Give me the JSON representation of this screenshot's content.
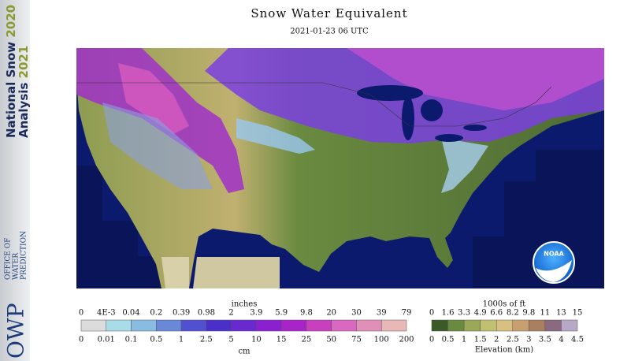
{
  "sidebar": {
    "line1": "National Snow",
    "year1": "2020",
    "line2": "Analysis",
    "year2": "2021"
  },
  "agency": {
    "abbr": "OWP",
    "name_lines": [
      "OFFICE OF",
      "WATER",
      "PREDICTION"
    ]
  },
  "title": "Snow Water Equivalent",
  "subtitle": "2021-01-23 06 UTC",
  "logo": "NOAA",
  "snow_legend": {
    "top_unit": "inches",
    "top_labels": [
      "0",
      "4E-3",
      "0.04",
      "0.2",
      "0.39",
      "0.98",
      "2",
      "3.9",
      "5.9",
      "9.8",
      "20",
      "30",
      "39",
      "79"
    ],
    "bottom_labels": [
      "0",
      "0.01",
      "0.1",
      "0.5",
      "1",
      "2.5",
      "5",
      "10",
      "15",
      "25",
      "50",
      "75",
      "100",
      "200"
    ],
    "bottom_unit": "cm"
  },
  "elevation_legend": {
    "top_unit": "1000s of ft",
    "top_labels": [
      "0",
      "1.6",
      "3.3",
      "4.9",
      "6.6",
      "8.2",
      "9.8",
      "11",
      "13",
      "15"
    ],
    "bottom_labels": [
      "0",
      "0.5",
      "1",
      "1.5",
      "2",
      "2.5",
      "3",
      "3.5",
      "4",
      "4.5"
    ],
    "bottom_unit": "Elevation (km)"
  }
}
